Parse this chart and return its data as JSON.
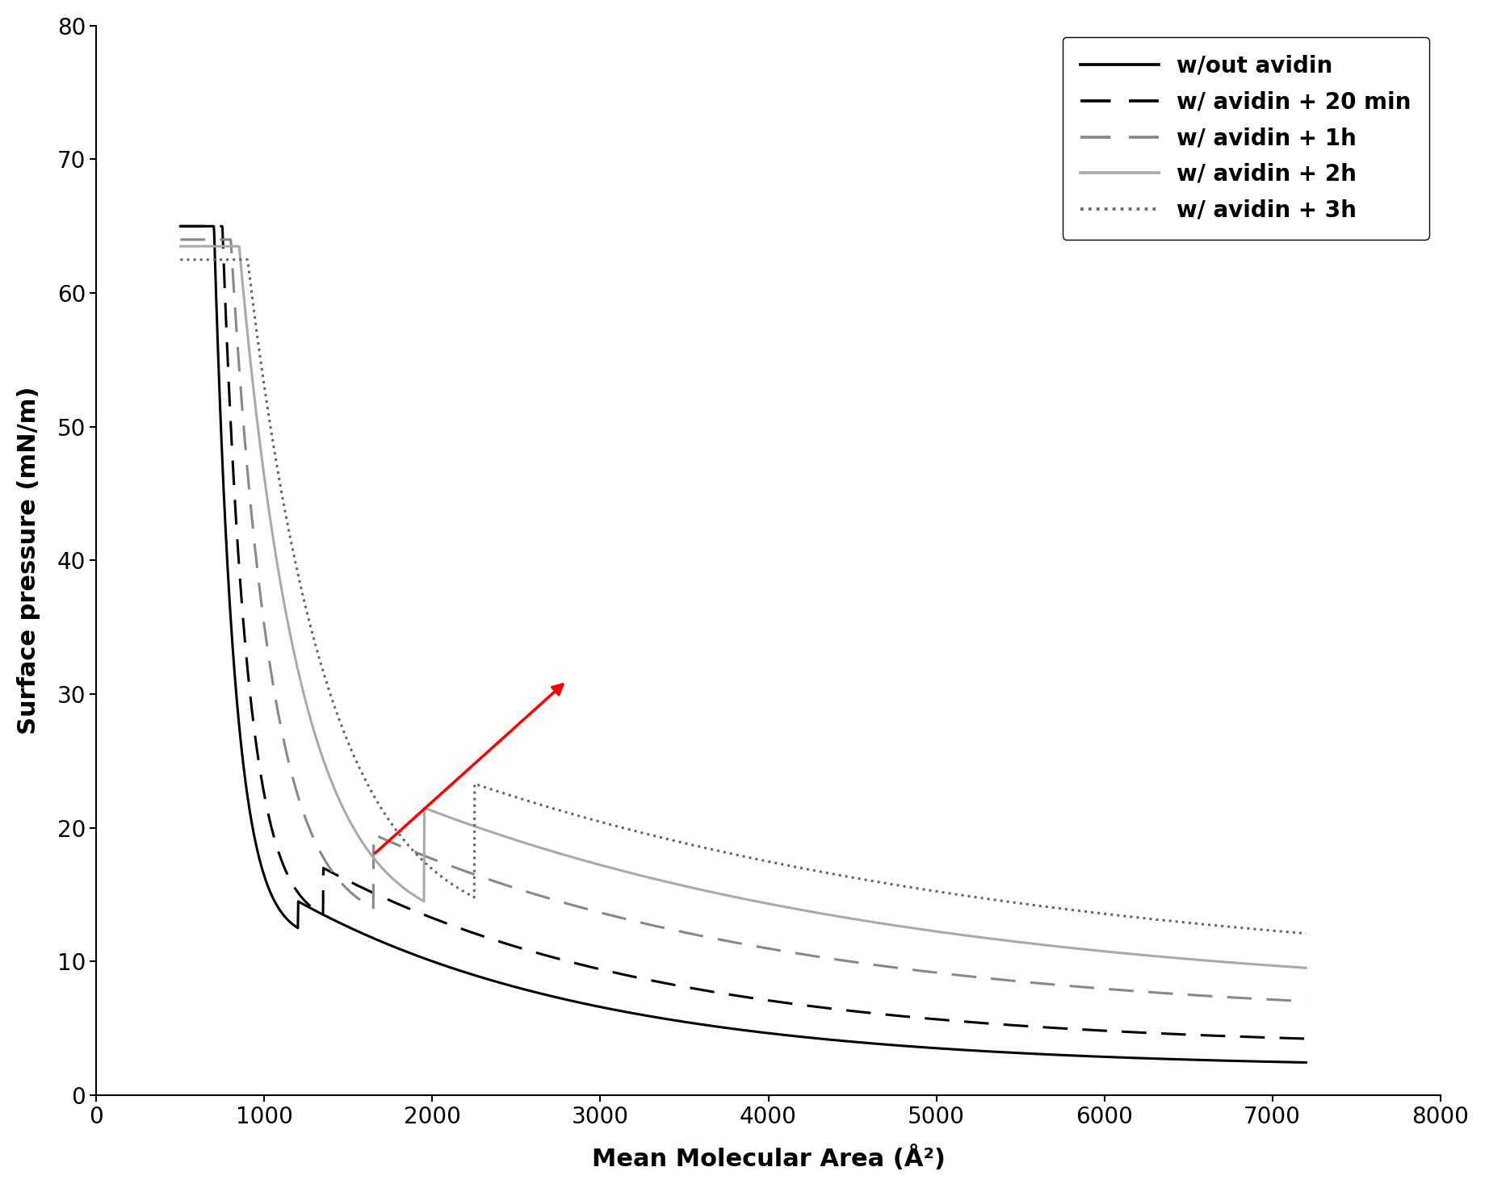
{
  "title": "",
  "xlabel": "Mean Molecular Area (Å²)",
  "ylabel": "Surface pressure (mN/m)",
  "xlim": [
    0,
    8000
  ],
  "ylim": [
    0,
    80
  ],
  "xticks": [
    0,
    1000,
    2000,
    3000,
    4000,
    5000,
    6000,
    7000,
    8000
  ],
  "yticks": [
    0,
    10,
    20,
    30,
    40,
    50,
    60,
    70,
    80
  ],
  "legend_entries": [
    {
      "label": "w/out avidin",
      "color": "#000000",
      "linestyle": "solid",
      "linewidth": 2.2
    },
    {
      "label": "w/ avidin + 20 min",
      "color": "#000000",
      "linestyle": "dashed",
      "linewidth": 2.2
    },
    {
      "label": "w/ avidin + 1h",
      "color": "#888888",
      "linestyle": "dashed",
      "linewidth": 2.2
    },
    {
      "label": "w/ avidin + 2h",
      "color": "#aaaaaa",
      "linestyle": "solid",
      "linewidth": 2.2
    },
    {
      "label": "w/ avidin + 3h",
      "color": "#666666",
      "linestyle": "dotted",
      "linewidth": 2.2
    }
  ],
  "arrow": {
    "x_start": 1650,
    "y_start": 18,
    "x_end": 2800,
    "y_end": 31,
    "color": "red",
    "linewidth": 2.5
  },
  "background_color": "#ffffff",
  "font_size_labels": 22,
  "font_size_ticks": 20,
  "font_size_legend": 20
}
